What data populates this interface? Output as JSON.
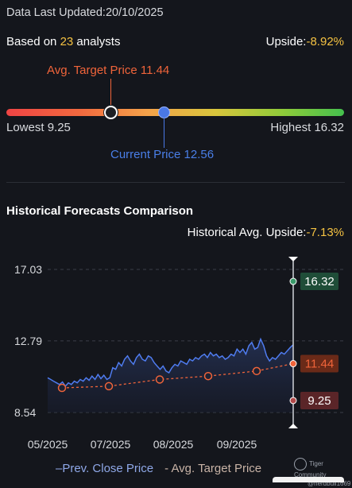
{
  "header": {
    "last_updated": "Data Last Updated:20/10/2025",
    "based_prefix": "Based on ",
    "analyst_count": "23",
    "based_suffix": " analysts",
    "upside_label": "Upside:",
    "upside_value": "-8.92%"
  },
  "range": {
    "avg_target_label": "Avg. Target Price 11.44",
    "current_price_label": "Current Price 12.56",
    "lowest_label": "Lowest 9.25",
    "highest_label": "Highest 16.32",
    "lowest": 9.25,
    "highest": 16.32,
    "avg_target": 11.44,
    "current": 12.56
  },
  "history": {
    "title": "Historical Forecasts Comparison",
    "upside_label": "Historical Avg. Upside:",
    "upside_value": "-7.13%"
  },
  "legend": {
    "close": "Prev. Close Price",
    "target": "Avg. Target Price"
  },
  "watermark": {
    "brand": "Tiger Community",
    "user": "@nerdbull1669"
  },
  "colors": {
    "background": "#14161c",
    "accent_yellow": "#f5c242",
    "target_orange": "#f0643a",
    "current_blue": "#4a78e6",
    "close_line": "#4f7cf0",
    "high_badge": "#1f4d38",
    "mid_badge": "#6a2a18",
    "low_badge": "#5a2528"
  },
  "chart_data": {
    "type": "line",
    "ylim": [
      8.54,
      17.03
    ],
    "yticks": [
      "17.03",
      "12.79",
      "8.54"
    ],
    "xticks": [
      "05/2025",
      "07/2025",
      "08/2025",
      "09/2025"
    ],
    "series": [
      {
        "name": "Prev. Close Price",
        "values": [
          10.6,
          10.5,
          10.4,
          10.3,
          10.2,
          10.35,
          10.1,
          10.3,
          10.2,
          10.4,
          10.3,
          10.5,
          10.4,
          10.6,
          10.45,
          10.7,
          10.5,
          10.8,
          10.55,
          10.75,
          10.5,
          10.6,
          11.2,
          11.1,
          11.5,
          11.3,
          11.7,
          11.9,
          11.6,
          11.4,
          11.8,
          12.0,
          11.7,
          11.6,
          11.9,
          11.8,
          11.5,
          11.3,
          11.1,
          11.3,
          11.0,
          10.9,
          11.2,
          11.4,
          11.3,
          11.6,
          11.5,
          11.4,
          11.7,
          11.6,
          11.8,
          11.7,
          11.9,
          12.0,
          11.8,
          12.1,
          11.9,
          12.0,
          11.8,
          11.9,
          11.7,
          11.8,
          12.0,
          11.9,
          12.3,
          12.1,
          12.3,
          12.0,
          12.5,
          12.7,
          12.3,
          12.4,
          12.9,
          12.5,
          11.9,
          11.6,
          11.8,
          11.7,
          11.9,
          12.1,
          12.0,
          12.2,
          12.4,
          12.56
        ]
      },
      {
        "name": "Avg. Target Price",
        "values": [
          10.0,
          10.1,
          10.5,
          10.7,
          11.0,
          11.44
        ]
      }
    ],
    "final_markers": {
      "high": "16.32",
      "avg": "11.44",
      "low": "9.25"
    }
  }
}
